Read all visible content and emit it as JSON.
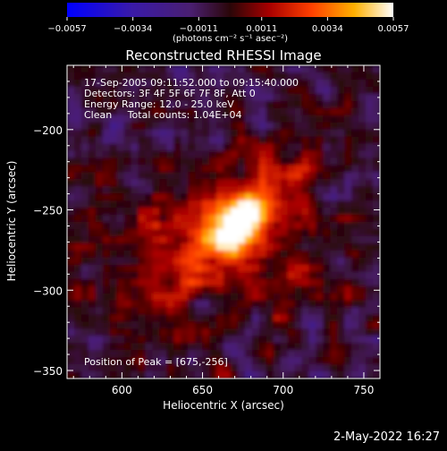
{
  "chart_data": {
    "type": "heatmap",
    "title": "Reconstructed RHESSI Image",
    "xlabel": "Heliocentric X (arcsec)",
    "ylabel": "Heliocentric Y (arcsec)",
    "xlim": [
      566,
      760
    ],
    "ylim": [
      -355,
      -160
    ],
    "x_ticks": [
      600,
      650,
      700,
      750
    ],
    "y_ticks": [
      -200,
      -250,
      -300,
      -350
    ],
    "x_tick_labels": [
      "600",
      "650",
      "700",
      "750"
    ],
    "y_tick_labels": [
      "−200",
      "−250",
      "−300",
      "−350"
    ],
    "colorbar": {
      "range": [
        -0.0057,
        0.0057
      ],
      "tick_values": [
        -0.0057,
        -0.0034,
        -0.0011,
        0.0011,
        0.0034,
        0.0057
      ],
      "tick_labels": [
        "−0.0057",
        "−0.0034",
        "−0.0011",
        "0.0011",
        "0.0034",
        "0.0057"
      ],
      "units": "(photons cm⁻² s⁻¹ asec⁻²)"
    },
    "peak": {
      "x": 675,
      "y": -256,
      "value": 0.0057
    },
    "annotations": [
      "17-Sep-2005 09:11:52.000 to 09:15:40.000",
      "Detectors: 3F 4F 5F 6F 7F 8F, Att 0",
      "Energy Range: 12.0 - 25.0 keV",
      "Clean     Total counts: 1.04E+04"
    ],
    "peak_label": "Position of Peak = [675,-256]"
  },
  "footer": {
    "date": "2-May-2022 16:27"
  }
}
